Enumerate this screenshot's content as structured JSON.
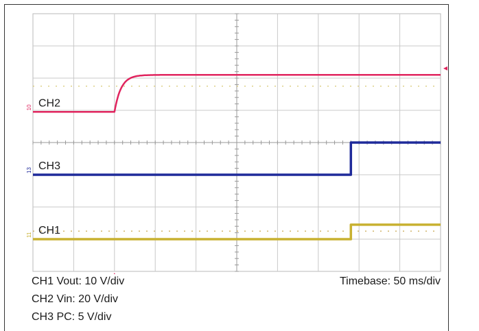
{
  "chart_data": {
    "type": "line",
    "title": "",
    "time_per_div_label": "Timebase: 50 ms/div",
    "x_unit": "ms",
    "x_range": [
      0,
      500
    ],
    "divisions": {
      "x": 10,
      "y": 8
    },
    "trigger_marker": {
      "x": 100
    },
    "grid": true,
    "series": [
      {
        "name": "CH2",
        "label": "CH2",
        "ground_marker": "10",
        "color": "#e0245e",
        "scale_label": "CH2 Vin: 20 V/div",
        "baseline_div": 4.95,
        "high_div": 6.1,
        "step_time_ms": 100,
        "response": "exponential",
        "tau_ms": 8,
        "line_width": 2.5
      },
      {
        "name": "CH3",
        "label": "CH3",
        "ground_marker": "13",
        "color": "#1f2a9a",
        "scale_label": "CH3 PC: 5 V/div",
        "baseline_div": 3.0,
        "high_div": 4.0,
        "step_time_ms": 390,
        "response": "step",
        "line_width": 3.5
      },
      {
        "name": "CH1",
        "label": "CH1",
        "ground_marker": "11",
        "color": "#c8b130",
        "scale_label": "CH1 Vout: 10 V/div",
        "baseline_div": 1.0,
        "high_div": 1.45,
        "step_time_ms": 390,
        "response": "step",
        "line_width": 3.5
      }
    ],
    "reference_lines": [
      {
        "color": "#d8c870",
        "div": 5.75
      },
      {
        "color": "#c9a850",
        "div": 1.25
      }
    ]
  },
  "caption": {
    "ch1": "CH1 Vout: 10 V/div",
    "ch2": "CH2 Vin: 20 V/div",
    "ch3": "CH3 PC: 5 V/div",
    "timebase": "Timebase: 50 ms/div"
  }
}
